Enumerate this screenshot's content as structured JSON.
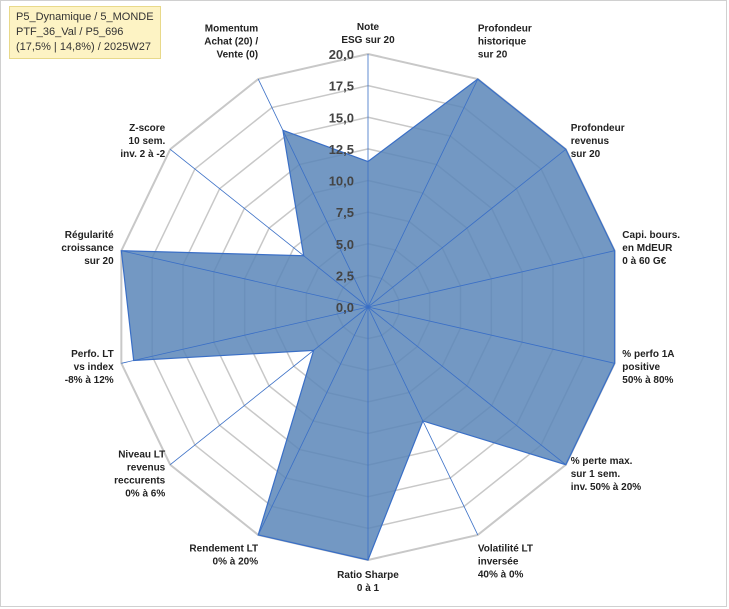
{
  "info_box": {
    "line1": "P5_Dynamique / 5_MONDE",
    "line2": "PTF_36_Val / P5_696",
    "line3": "(17,5% | 14,8%) / 2025W27"
  },
  "colors": {
    "fill": "#5b86b8",
    "stroke": "#3a6fc6",
    "grid": "#c8c8c8",
    "spoke": "#3a6fc6",
    "info_bg": "#fdf3c4"
  },
  "chart_data": {
    "type": "radar",
    "title": "",
    "rlim": [
      0,
      20
    ],
    "grid": true,
    "ticks": [
      "0,0",
      "2,5",
      "5,0",
      "7,5",
      "10,0",
      "12,5",
      "15,0",
      "17,5",
      "20,0"
    ],
    "tick_values": [
      0,
      2.5,
      5,
      7.5,
      10,
      12.5,
      15,
      17.5,
      20
    ],
    "categories": [
      [
        "Note",
        "ESG sur 20"
      ],
      [
        "Profondeur",
        "historique",
        "sur 20"
      ],
      [
        "Profondeur",
        "revenus",
        "sur 20"
      ],
      [
        "Capi. bours.",
        "en MdEUR",
        "0 à 60 G€"
      ],
      [
        "% perfo 1A",
        "positive",
        "50% à 80%"
      ],
      [
        "% perte max.",
        "sur 1 sem.",
        "inv. 50% à 20%"
      ],
      [
        "Volatilité LT",
        "inversée",
        "40% à 0%"
      ],
      [
        "Ratio Sharpe",
        "0 à 1"
      ],
      [
        "Rendement LT",
        "0% à 20%"
      ],
      [
        "Niveau LT",
        "revenus",
        "reccurents",
        "0% à 6%"
      ],
      [
        "Perfo. LT",
        "vs index",
        "-8% à 12%"
      ],
      [
        "Régularité",
        "croissance",
        "sur 20"
      ],
      [
        "Z-score",
        "10 sem.",
        "inv. 2 à -2"
      ],
      [
        "Momentum",
        "Achat (20) /",
        "Vente (0)"
      ]
    ],
    "series": [
      {
        "values": [
          11.5,
          20,
          20,
          20,
          20,
          20,
          10,
          20,
          20,
          5.5,
          19,
          20,
          6.5,
          15.5
        ]
      }
    ]
  }
}
